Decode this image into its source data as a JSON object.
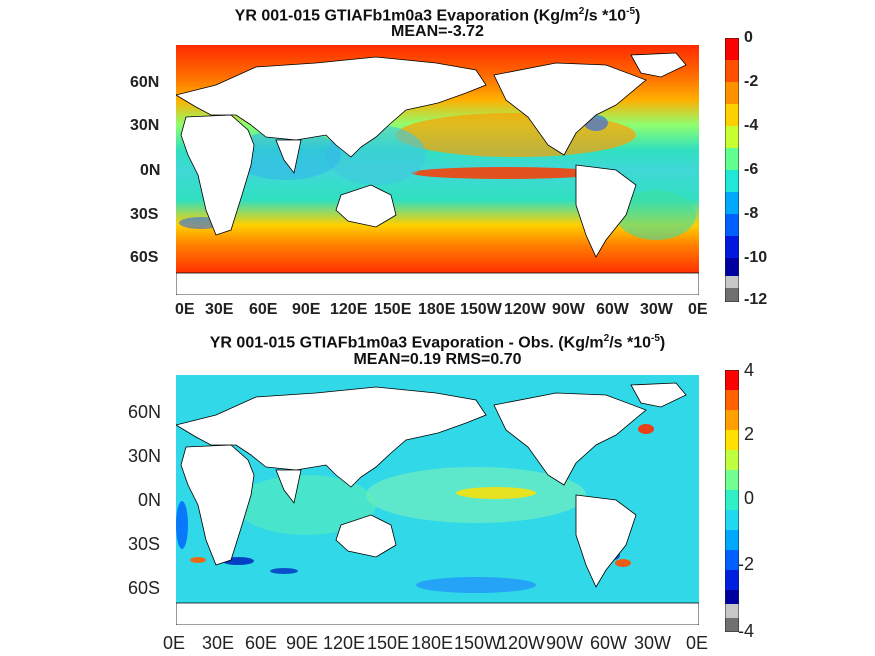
{
  "top": {
    "title_main": "YR 001-015 GTIAFb1m0a3  Evaporation (Kg/m",
    "title_sup1": "2",
    "title_mid": "/s *10",
    "title_sup2": "-5",
    "title_end": ")",
    "mean": "MEAN=-3.72",
    "colorbar_ticks": [
      "0",
      "-2",
      "-4",
      "-6",
      "-8",
      "-10",
      "-12"
    ]
  },
  "bottom": {
    "title_main": "YR 001-015 GTIAFb1m0a3 Evaporation - Obs. (Kg/m",
    "title_sup1": "2",
    "title_mid": "/s *10",
    "title_sup2": "-5",
    "title_end": ")",
    "stats": "MEAN=0.19   RMS=0.70",
    "colorbar_ticks": [
      "4",
      "2",
      "0",
      "-2",
      "-4"
    ]
  },
  "y_ticks": [
    "60N",
    "30N",
    "0N",
    "30S",
    "60S"
  ],
  "x_ticks": [
    "0E",
    "30E",
    "60E",
    "90E",
    "120E",
    "150E",
    "180E",
    "150W",
    "120W",
    "90W",
    "60W",
    "30W",
    "0E"
  ]
}
